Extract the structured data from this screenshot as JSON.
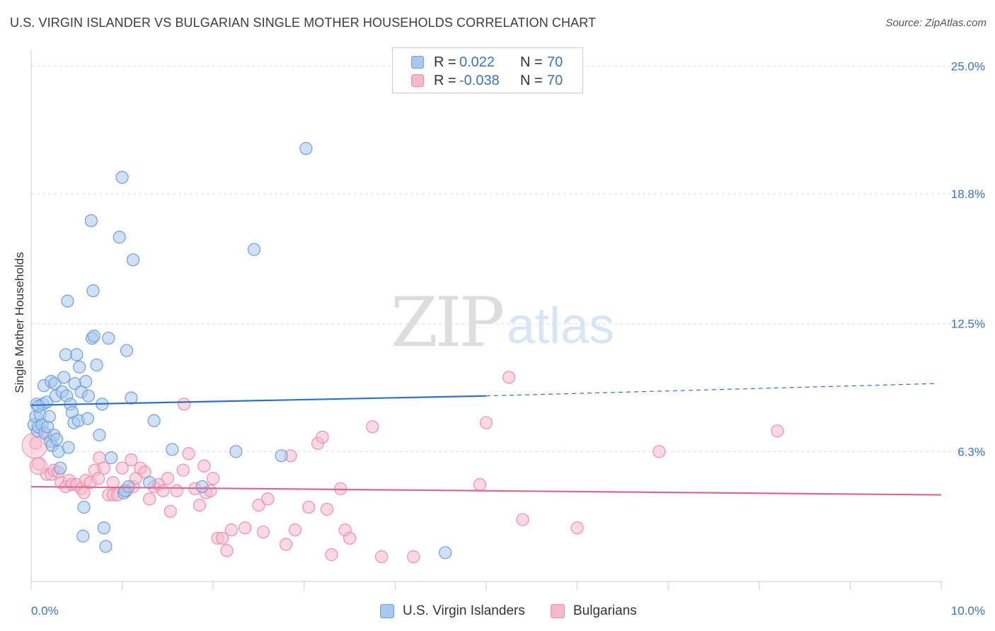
{
  "header": {
    "title": "U.S. VIRGIN ISLANDER VS BULGARIAN SINGLE MOTHER HOUSEHOLDS CORRELATION CHART",
    "source": "Source: ZipAtlas.com"
  },
  "watermark": {
    "zip": "ZIP",
    "atlas": "atlas"
  },
  "legend": {
    "rows": [
      {
        "r_label": "R =",
        "r_value": "0.022",
        "n_label": "N =",
        "n_value": "70"
      },
      {
        "r_label": "R =",
        "r_value": "-0.038",
        "n_label": "N =",
        "n_value": "70"
      }
    ]
  },
  "bottom_legend": {
    "series1": "U.S. Virgin Islanders",
    "series2": "Bulgarians"
  },
  "colors": {
    "blue_fill": "#a9c8ee",
    "blue_stroke": "#6f9fd8",
    "blue_line": "#2f6fd0",
    "pink_fill": "#f6b9cc",
    "pink_stroke": "#ee8fae",
    "pink_line": "#e0668f",
    "tick_text": "#3a74c4",
    "grid": "#dddddd"
  },
  "chart_data": {
    "type": "scatter",
    "title": "U.S. VIRGIN ISLANDER VS BULGARIAN SINGLE MOTHER HOUSEHOLDS CORRELATION CHART",
    "xlabel": "",
    "ylabel": "Single Mother Households",
    "xlim": [
      0,
      10
    ],
    "ylim": [
      0,
      25.8
    ],
    "x_tick_labels": [
      {
        "value": 0,
        "label": "0.0%"
      },
      {
        "value": 10,
        "label": "10.0%"
      }
    ],
    "y_tick_labels": [
      {
        "value": 6.3,
        "label": "6.3%"
      },
      {
        "value": 12.5,
        "label": "12.5%"
      },
      {
        "value": 18.8,
        "label": "18.8%"
      },
      {
        "value": 25.0,
        "label": "25.0%"
      }
    ],
    "x_minor_ticks": [
      0,
      1,
      2,
      3,
      4,
      5,
      6,
      7,
      8,
      9,
      10
    ],
    "grid": true,
    "series": [
      {
        "name": "U.S. Virgin Islanders",
        "r": 0.022,
        "n": 70,
        "trend": {
          "x0": 0,
          "y0": 8.55,
          "x1": 5.0,
          "y1": 9.0,
          "dash_to_x": 9.95,
          "dash_to_y": 9.6
        },
        "points": [
          [
            0.03,
            7.6
          ],
          [
            0.05,
            8.0
          ],
          [
            0.06,
            8.6
          ],
          [
            0.07,
            7.3
          ],
          [
            0.08,
            7.5
          ],
          [
            0.1,
            8.1
          ],
          [
            0.12,
            7.6
          ],
          [
            0.13,
            8.6
          ],
          [
            0.14,
            9.5
          ],
          [
            0.15,
            7.2
          ],
          [
            0.17,
            8.7
          ],
          [
            0.18,
            7.5
          ],
          [
            0.2,
            8.0
          ],
          [
            0.21,
            6.8
          ],
          [
            0.22,
            9.7
          ],
          [
            0.23,
            6.6
          ],
          [
            0.25,
            7.1
          ],
          [
            0.26,
            9.6
          ],
          [
            0.27,
            9.0
          ],
          [
            0.28,
            6.9
          ],
          [
            0.3,
            6.3
          ],
          [
            0.32,
            5.5
          ],
          [
            0.34,
            9.2
          ],
          [
            0.36,
            9.9
          ],
          [
            0.38,
            11.0
          ],
          [
            0.39,
            9.0
          ],
          [
            0.4,
            13.6
          ],
          [
            0.41,
            6.5
          ],
          [
            0.43,
            8.6
          ],
          [
            0.45,
            8.2
          ],
          [
            0.47,
            7.7
          ],
          [
            0.48,
            9.6
          ],
          [
            0.5,
            11.0
          ],
          [
            0.52,
            7.8
          ],
          [
            0.53,
            10.4
          ],
          [
            0.55,
            9.2
          ],
          [
            0.57,
            2.2
          ],
          [
            0.58,
            3.6
          ],
          [
            0.6,
            9.7
          ],
          [
            0.62,
            7.9
          ],
          [
            0.63,
            9.0
          ],
          [
            0.66,
            17.5
          ],
          [
            0.67,
            11.8
          ],
          [
            0.68,
            14.1
          ],
          [
            0.69,
            11.9
          ],
          [
            0.72,
            10.5
          ],
          [
            0.75,
            7.1
          ],
          [
            0.78,
            8.6
          ],
          [
            0.8,
            2.6
          ],
          [
            0.82,
            1.7
          ],
          [
            0.85,
            11.8
          ],
          [
            0.88,
            6.0
          ],
          [
            0.97,
            16.7
          ],
          [
            1.0,
            19.6
          ],
          [
            1.02,
            4.3
          ],
          [
            1.03,
            4.4
          ],
          [
            1.05,
            11.2
          ],
          [
            1.07,
            4.6
          ],
          [
            1.1,
            8.9
          ],
          [
            1.12,
            15.6
          ],
          [
            1.35,
            7.8
          ],
          [
            1.3,
            4.8
          ],
          [
            1.55,
            6.4
          ],
          [
            1.88,
            4.6
          ],
          [
            2.25,
            6.3
          ],
          [
            2.45,
            16.1
          ],
          [
            2.75,
            6.1
          ],
          [
            3.02,
            21.0
          ],
          [
            4.55,
            1.4
          ],
          [
            0.08,
            8.5
          ]
        ]
      },
      {
        "name": "Bulgarians",
        "r": -0.038,
        "n": 70,
        "trend": {
          "x0": 0,
          "y0": 4.6,
          "x1": 10.0,
          "y1": 4.2
        },
        "points": [
          [
            0.05,
            6.7
          ],
          [
            0.08,
            5.7
          ],
          [
            0.15,
            7.2
          ],
          [
            0.17,
            5.2
          ],
          [
            0.22,
            5.2
          ],
          [
            0.25,
            5.4
          ],
          [
            0.3,
            5.3
          ],
          [
            0.33,
            4.8
          ],
          [
            0.38,
            4.6
          ],
          [
            0.42,
            4.9
          ],
          [
            0.45,
            4.7
          ],
          [
            0.5,
            4.7
          ],
          [
            0.55,
            4.5
          ],
          [
            0.58,
            4.3
          ],
          [
            0.6,
            4.9
          ],
          [
            0.65,
            4.8
          ],
          [
            0.7,
            5.4
          ],
          [
            0.74,
            5.0
          ],
          [
            0.75,
            6.0
          ],
          [
            0.8,
            5.5
          ],
          [
            0.85,
            4.2
          ],
          [
            0.9,
            4.8
          ],
          [
            0.9,
            4.2
          ],
          [
            0.95,
            4.2
          ],
          [
            1.0,
            5.5
          ],
          [
            1.05,
            4.4
          ],
          [
            1.1,
            5.9
          ],
          [
            1.12,
            4.6
          ],
          [
            1.15,
            5.0
          ],
          [
            1.2,
            5.5
          ],
          [
            1.25,
            5.3
          ],
          [
            1.3,
            4.0
          ],
          [
            1.35,
            4.6
          ],
          [
            1.4,
            4.7
          ],
          [
            1.45,
            4.4
          ],
          [
            1.5,
            5.0
          ],
          [
            1.53,
            3.4
          ],
          [
            1.6,
            4.4
          ],
          [
            1.67,
            5.4
          ],
          [
            1.68,
            8.6
          ],
          [
            1.73,
            6.2
          ],
          [
            1.8,
            4.5
          ],
          [
            1.85,
            3.7
          ],
          [
            1.9,
            5.6
          ],
          [
            1.92,
            4.3
          ],
          [
            1.97,
            4.4
          ],
          [
            2.0,
            5.0
          ],
          [
            2.05,
            2.1
          ],
          [
            2.1,
            2.1
          ],
          [
            2.15,
            1.5
          ],
          [
            2.2,
            2.5
          ],
          [
            2.35,
            2.6
          ],
          [
            2.5,
            3.7
          ],
          [
            2.55,
            2.4
          ],
          [
            2.6,
            4.0
          ],
          [
            2.8,
            1.8
          ],
          [
            2.85,
            6.1
          ],
          [
            2.9,
            2.5
          ],
          [
            3.05,
            3.6
          ],
          [
            3.15,
            6.7
          ],
          [
            3.2,
            7.0
          ],
          [
            3.25,
            3.5
          ],
          [
            3.3,
            1.3
          ],
          [
            3.4,
            4.5
          ],
          [
            3.45,
            2.5
          ],
          [
            3.5,
            2.1
          ],
          [
            3.75,
            7.5
          ],
          [
            3.85,
            1.2
          ],
          [
            4.2,
            1.2
          ],
          [
            5.0,
            7.7
          ]
        ],
        "extra_points": [
          [
            5.25,
            9.9
          ],
          [
            4.93,
            4.7
          ],
          [
            5.4,
            3.0
          ],
          [
            6.0,
            2.6
          ],
          [
            6.9,
            6.3
          ],
          [
            8.2,
            7.3
          ]
        ]
      }
    ]
  }
}
